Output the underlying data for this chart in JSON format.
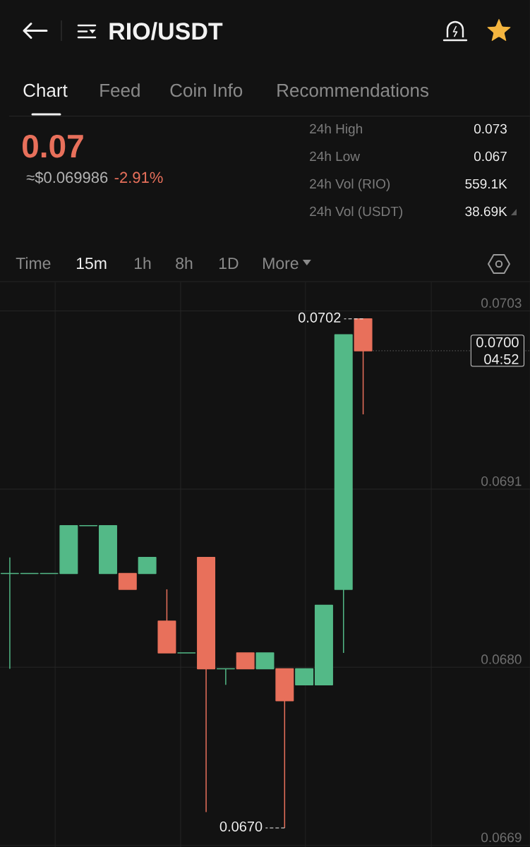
{
  "chart_data": {
    "type": "candlestick",
    "title": "RIO/USDT",
    "categories": [
      null,
      null,
      null,
      null,
      null,
      null,
      null,
      null,
      null,
      null,
      null,
      null,
      null,
      null,
      null,
      null,
      null,
      null,
      null,
      null,
      null,
      null,
      null,
      null,
      null,
      null,
      null
    ],
    "ohlc": [
      [
        0.0686,
        0.0687,
        0.068,
        0.0686
      ],
      [
        0.0686,
        0.0686,
        0.0686,
        0.0686
      ],
      [
        0.0686,
        0.0686,
        0.0686,
        0.0686
      ],
      [
        0.0686,
        0.0689,
        0.0686,
        0.0689
      ],
      [
        0.0689,
        0.0689,
        0.0689,
        0.0689
      ],
      [
        0.0686,
        0.0689,
        0.0686,
        0.0689
      ],
      [
        0.0686,
        0.0686,
        0.0685,
        0.0685
      ],
      [
        0.0686,
        0.0687,
        0.0686,
        0.0687
      ],
      [
        0.0683,
        0.0685,
        0.0681,
        0.0681
      ],
      [
        0.0681,
        0.0681,
        0.0681,
        0.0681
      ],
      [
        0.0687,
        0.0687,
        0.0671,
        0.068
      ],
      [
        0.068,
        0.068,
        0.0679,
        0.068
      ],
      [
        0.0681,
        0.0681,
        0.068,
        0.068
      ],
      [
        0.068,
        0.0681,
        0.068,
        0.0681
      ],
      [
        0.068,
        0.068,
        0.067,
        0.0678
      ],
      [
        0.0679,
        0.068,
        0.0679,
        0.068
      ],
      [
        0.0679,
        0.0684,
        0.0679,
        0.0684
      ],
      [
        0.0685,
        0.0701,
        0.0681,
        0.0701
      ],
      [
        0.0702,
        0.0702,
        0.0696,
        0.07
      ],
      null,
      null,
      null,
      null,
      null,
      null,
      null,
      null
    ],
    "colors": [
      "#53b987",
      "#53b987",
      "#53b987",
      "#53b987",
      "#53b987",
      "#53b987",
      "#e8705b",
      "#53b987",
      "#e8705b",
      "#53b987",
      "#e8705b",
      "#53b987",
      "#e8705b",
      "#53b987",
      "#e8705b",
      "#53b987",
      "#53b987",
      "#53b987",
      "#e8705b",
      null,
      null,
      null,
      null,
      null,
      null,
      null,
      null
    ],
    "ylim": [
      0.06688,
      0.07043
    ],
    "yticks": [
      {
        "value": 0.07025,
        "label": "0.0703"
      },
      {
        "value": 0.06913,
        "label": "0.0691"
      },
      {
        "value": 0.06801,
        "label": "0.0680"
      },
      {
        "value": 0.06689,
        "label": "0.0669"
      }
    ],
    "grid": true,
    "tick_labels": "y",
    "ref_lines": [
      {
        "axis": "y",
        "value": 0.07,
        "label": "0.0700",
        "line_style": "dotted"
      }
    ],
    "annotations": [
      "0.0702",
      "0.0670",
      {
        "text": "04:52",
        "y": 0.07
      },
      "Chart",
      "Feed",
      "Coin Info",
      "Recommendations",
      "0.07",
      "≈$0.069986",
      "-2.91%",
      "24h High",
      "0.073",
      "24h Low",
      "0.067",
      "24h Vol (RIO)",
      "559.1K",
      "24h Vol (USDT)",
      "38.69K",
      "Time",
      "15m",
      "1h",
      "8h",
      "1D",
      "More"
    ]
  }
}
